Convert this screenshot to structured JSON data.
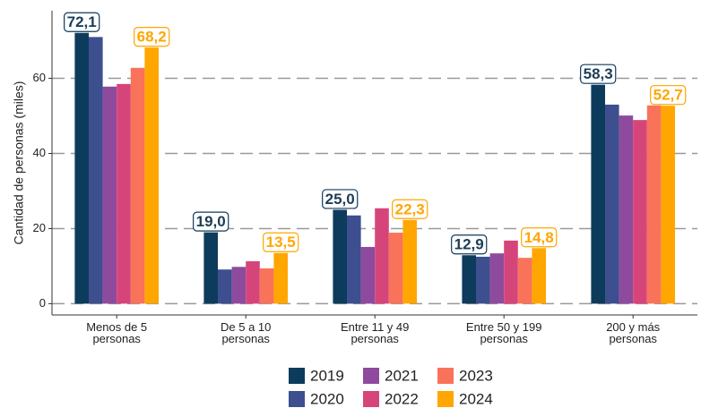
{
  "chart_data": {
    "type": "bar",
    "y_label": "Cantidad de personas (miles)",
    "categories": [
      "Menos  de 5\npersonas",
      "De 5 a 10\npersonas",
      "Entre 11 y 49\npersonas",
      "Entre 50 y 199\npersonas",
      "200 y más\npersonas"
    ],
    "series": [
      {
        "name": "2019",
        "color": "#0d3b5c",
        "values": [
          72.1,
          19.0,
          25.0,
          12.9,
          58.3
        ],
        "value_labels": [
          "72,1",
          "19,0",
          "25,0",
          "12,9",
          "58,3"
        ]
      },
      {
        "name": "2020",
        "color": "#3d4f8f",
        "values": [
          71,
          9.1,
          23.5,
          12.5,
          53
        ]
      },
      {
        "name": "2021",
        "color": "#8e4b9e",
        "values": [
          57.8,
          9.8,
          15.1,
          13.4,
          50.1
        ]
      },
      {
        "name": "2022",
        "color": "#d6457a",
        "values": [
          58.5,
          11.3,
          25.4,
          16.8,
          48.9
        ]
      },
      {
        "name": "2023",
        "color": "#f8735a",
        "values": [
          62.8,
          9.4,
          18.9,
          12.2,
          52.8
        ]
      },
      {
        "name": "2024",
        "color": "#ffa600",
        "values": [
          68.2,
          13.5,
          22.3,
          14.8,
          52.7
        ],
        "value_labels": [
          "68,2",
          "13,5",
          "22,3",
          "14,8",
          "52,7"
        ]
      }
    ],
    "ylim": [
      -3,
      78
    ],
    "yticks": [
      0,
      20,
      40,
      60
    ],
    "grid": true,
    "legend": "bottom"
  }
}
